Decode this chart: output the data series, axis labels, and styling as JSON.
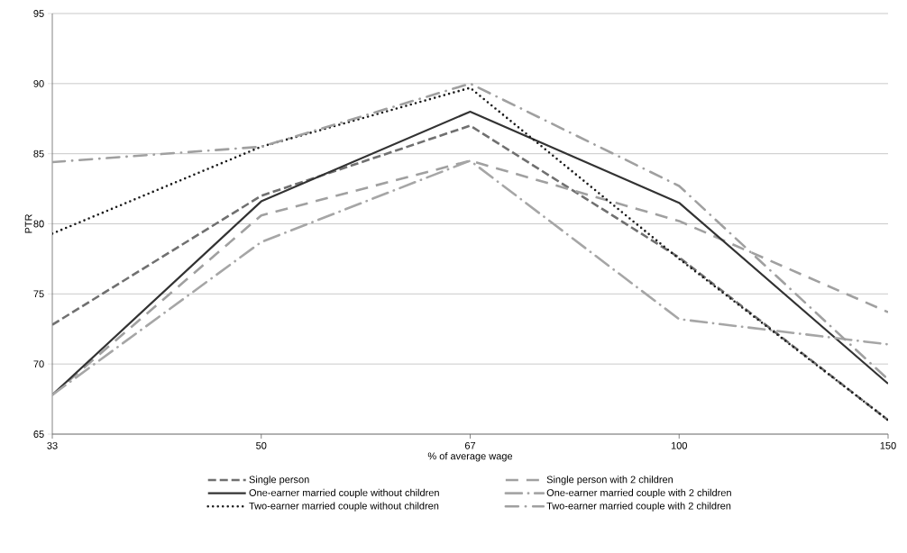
{
  "chart_data": {
    "type": "line",
    "xlabel": "% of average wage",
    "ylabel": "PTR",
    "categories": [
      "33",
      "50",
      "67",
      "100",
      "150"
    ],
    "ylim": [
      65,
      95
    ],
    "yticks": [
      65,
      70,
      75,
      80,
      85,
      90,
      95
    ],
    "grid": "y",
    "legend": "bottom",
    "series": [
      {
        "name": "Single person",
        "color": "#707070",
        "line_style": "dashed",
        "values": [
          72.8,
          82.0,
          87.0,
          77.6,
          66.0
        ]
      },
      {
        "name": "Single person with 2 children",
        "color": "#a0a0a0",
        "line_style": "longdashed",
        "values": [
          67.8,
          80.6,
          84.5,
          80.2,
          73.7
        ]
      },
      {
        "name": "One-earner married couple without children",
        "color": "#333333",
        "line_style": "solid",
        "values": [
          67.8,
          81.6,
          88.0,
          81.5,
          68.6
        ]
      },
      {
        "name": "One-earner married couple with 2 children",
        "color": "#a6a6a6",
        "line_style": "longdashdot",
        "values": [
          67.8,
          78.7,
          84.5,
          73.2,
          71.4
        ]
      },
      {
        "name": "Two-earner married couple without children",
        "color": "#1a1a1a",
        "line_style": "dotted",
        "values": [
          79.3,
          85.5,
          89.7,
          77.5,
          66.0
        ]
      },
      {
        "name": "Two-earner married couple with 2 children",
        "color": "#a0a0a0",
        "line_style": "dashdot",
        "values": [
          84.4,
          85.5,
          90.0,
          82.7,
          68.9
        ]
      }
    ]
  }
}
